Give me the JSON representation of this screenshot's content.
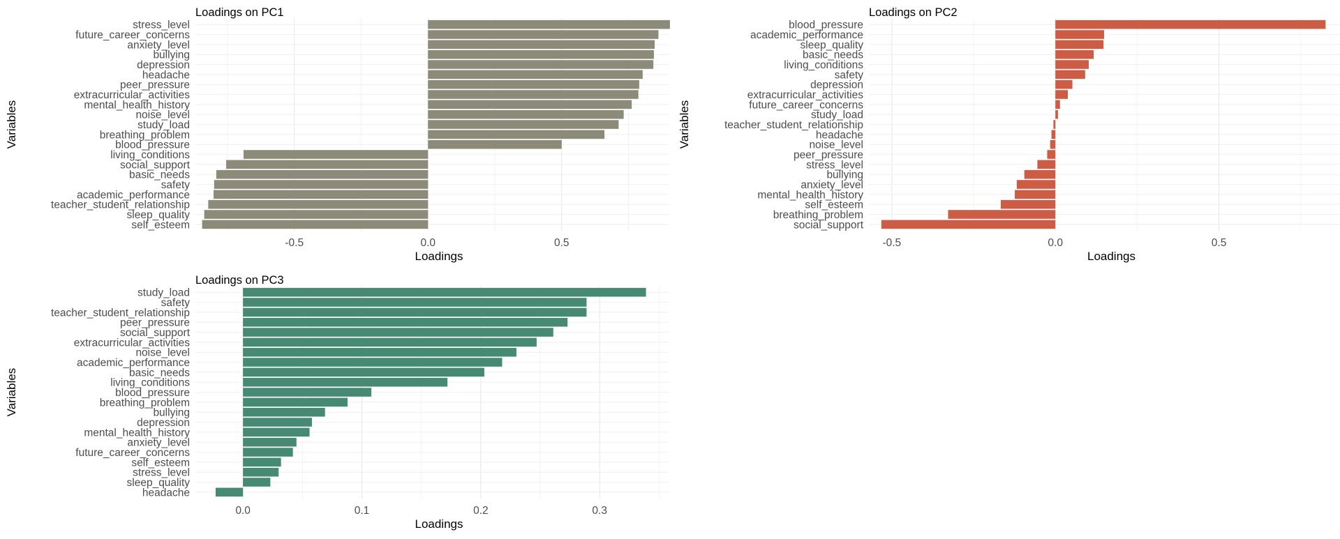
{
  "chart_data": [
    {
      "type": "bar",
      "orientation": "horizontal",
      "title": "Loadings on PC1",
      "xlabel": "Loadings",
      "ylabel": "Variables",
      "xlim": [
        -0.87,
        0.9
      ],
      "xticks": [
        -0.5,
        0.0,
        0.5
      ],
      "xtick_labels": [
        "-0.5",
        "0.0",
        "0.5"
      ],
      "grid": true,
      "color": "#8c8a78",
      "categories": [
        "stress_level",
        "future_career_concerns",
        "anxiety_level",
        "bullying",
        "depression",
        "headache",
        "peer_pressure",
        "extracurricular_activities",
        "mental_health_history",
        "noise_level",
        "study_load",
        "breathing_problem",
        "blood_pressure",
        "living_conditions",
        "social_support",
        "basic_needs",
        "safety",
        "academic_performance",
        "teacher_student_relationship",
        "sleep_quality",
        "self_esteem"
      ],
      "values": [
        0.905,
        0.862,
        0.848,
        0.845,
        0.843,
        0.803,
        0.79,
        0.787,
        0.762,
        0.732,
        0.713,
        0.66,
        0.5,
        -0.69,
        -0.755,
        -0.792,
        -0.8,
        -0.802,
        -0.822,
        -0.837,
        -0.845
      ]
    },
    {
      "type": "bar",
      "orientation": "horizontal",
      "title": "Loadings on PC2",
      "xlabel": "Loadings",
      "ylabel": "Variables",
      "xlim": [
        -0.57,
        0.87
      ],
      "xticks": [
        -0.5,
        0.0,
        0.5
      ],
      "xtick_labels": [
        "-0.5",
        "0.0",
        "0.5"
      ],
      "grid": true,
      "color": "#cd5c45",
      "categories": [
        "blood_pressure",
        "academic_performance",
        "sleep_quality",
        "basic_needs",
        "living_conditions",
        "safety",
        "depression",
        "extracurricular_activities",
        "future_career_concerns",
        "study_load",
        "teacher_student_relationship",
        "headache",
        "noise_level",
        "peer_pressure",
        "stress_level",
        "bullying",
        "anxiety_level",
        "mental_health_history",
        "self_esteem",
        "breathing_problem",
        "social_support"
      ],
      "values": [
        0.826,
        0.149,
        0.147,
        0.117,
        0.102,
        0.091,
        0.052,
        0.038,
        0.014,
        0.008,
        -0.006,
        -0.012,
        -0.016,
        -0.025,
        -0.055,
        -0.095,
        -0.118,
        -0.124,
        -0.167,
        -0.328,
        -0.532
      ]
    },
    {
      "type": "bar",
      "orientation": "horizontal",
      "title": "Loadings on PC3",
      "xlabel": "Loadings",
      "ylabel": "Variables",
      "xlim": [
        -0.04,
        0.358
      ],
      "xticks": [
        0.0,
        0.1,
        0.2,
        0.3
      ],
      "xtick_labels": [
        "0.0",
        "0.1",
        "0.2",
        "0.3"
      ],
      "grid": true,
      "color": "#468a74",
      "categories": [
        "study_load",
        "safety",
        "teacher_student_relationship",
        "peer_pressure",
        "social_support",
        "extracurricular_activities",
        "noise_level",
        "academic_performance",
        "basic_needs",
        "living_conditions",
        "blood_pressure",
        "breathing_problem",
        "bullying",
        "depression",
        "mental_health_history",
        "anxiety_level",
        "future_career_concerns",
        "self_esteem",
        "stress_level",
        "sleep_quality",
        "headache"
      ],
      "values": [
        0.339,
        0.289,
        0.289,
        0.273,
        0.261,
        0.247,
        0.23,
        0.218,
        0.203,
        0.172,
        0.108,
        0.088,
        0.069,
        0.058,
        0.056,
        0.045,
        0.042,
        0.032,
        0.03,
        0.023,
        -0.023
      ]
    }
  ]
}
